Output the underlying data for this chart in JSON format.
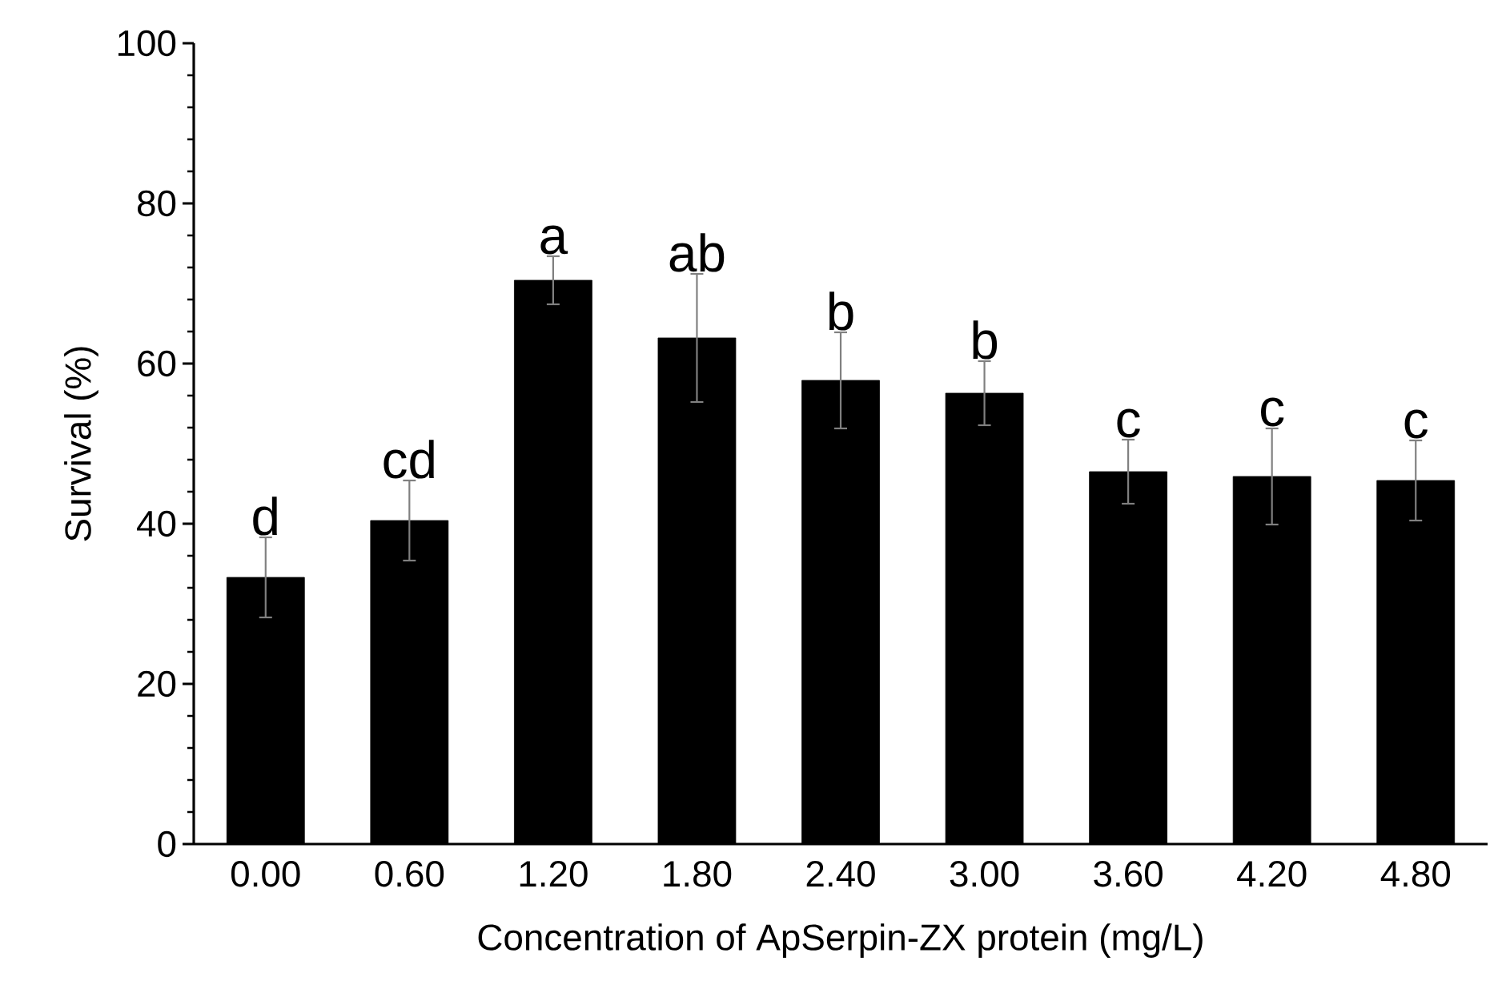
{
  "chart_data": {
    "type": "bar",
    "xlabel": "Concentration of ApSerpin-ZX protein (mg/L)",
    "ylabel": "Survival (%)",
    "categories": [
      "0.00",
      "0.60",
      "1.20",
      "1.80",
      "2.40",
      "3.00",
      "3.60",
      "4.20",
      "4.80"
    ],
    "values": [
      33.3,
      40.4,
      70.4,
      63.2,
      57.9,
      56.3,
      46.5,
      45.9,
      45.4
    ],
    "errors": [
      5,
      5,
      3,
      8,
      6,
      4,
      4,
      6,
      5
    ],
    "color": "#000000",
    "ylim": [
      0,
      100
    ],
    "yticks": [
      0,
      20,
      40,
      60,
      80,
      100
    ],
    "annotations": [
      {
        "text": "d",
        "x": "0.00",
        "y": 38.3
      },
      {
        "text": "cd",
        "x": "0.60",
        "y": 45.4
      },
      {
        "text": "a",
        "x": "1.20",
        "y": 73.4
      },
      {
        "text": "ab",
        "x": "1.80",
        "y": 71.2
      },
      {
        "text": "b",
        "x": "2.40",
        "y": 63.9
      },
      {
        "text": "b",
        "x": "3.00",
        "y": 60.3
      },
      {
        "text": "c",
        "x": "3.60",
        "y": 50.5
      },
      {
        "text": "c",
        "x": "4.20",
        "y": 51.9
      },
      {
        "text": "c",
        "x": "4.80",
        "y": 50.4
      }
    ]
  }
}
